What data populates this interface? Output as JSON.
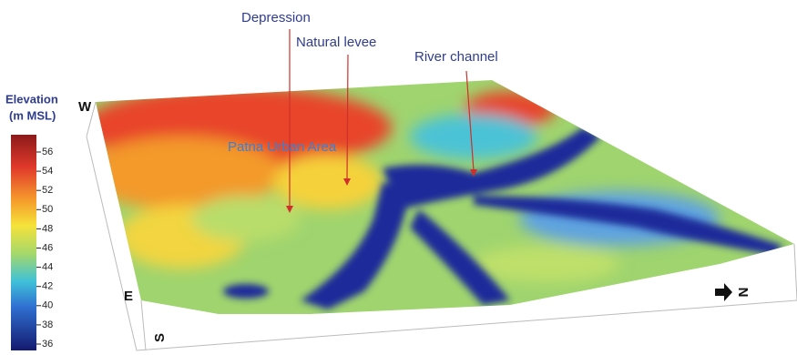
{
  "legend": {
    "title_line1": "Elevation",
    "title_line2": "(m MSL)",
    "ticks": [
      56,
      54,
      52,
      50,
      48,
      46,
      44,
      42,
      40,
      38,
      36
    ]
  },
  "annotations": [
    {
      "label": "Depression"
    },
    {
      "label": "Natural levee"
    },
    {
      "label": "River channel"
    }
  ],
  "area_label": "Patna Urban Area",
  "directions": {
    "west": "W",
    "east": "E",
    "south": "S",
    "north": "N"
  }
}
